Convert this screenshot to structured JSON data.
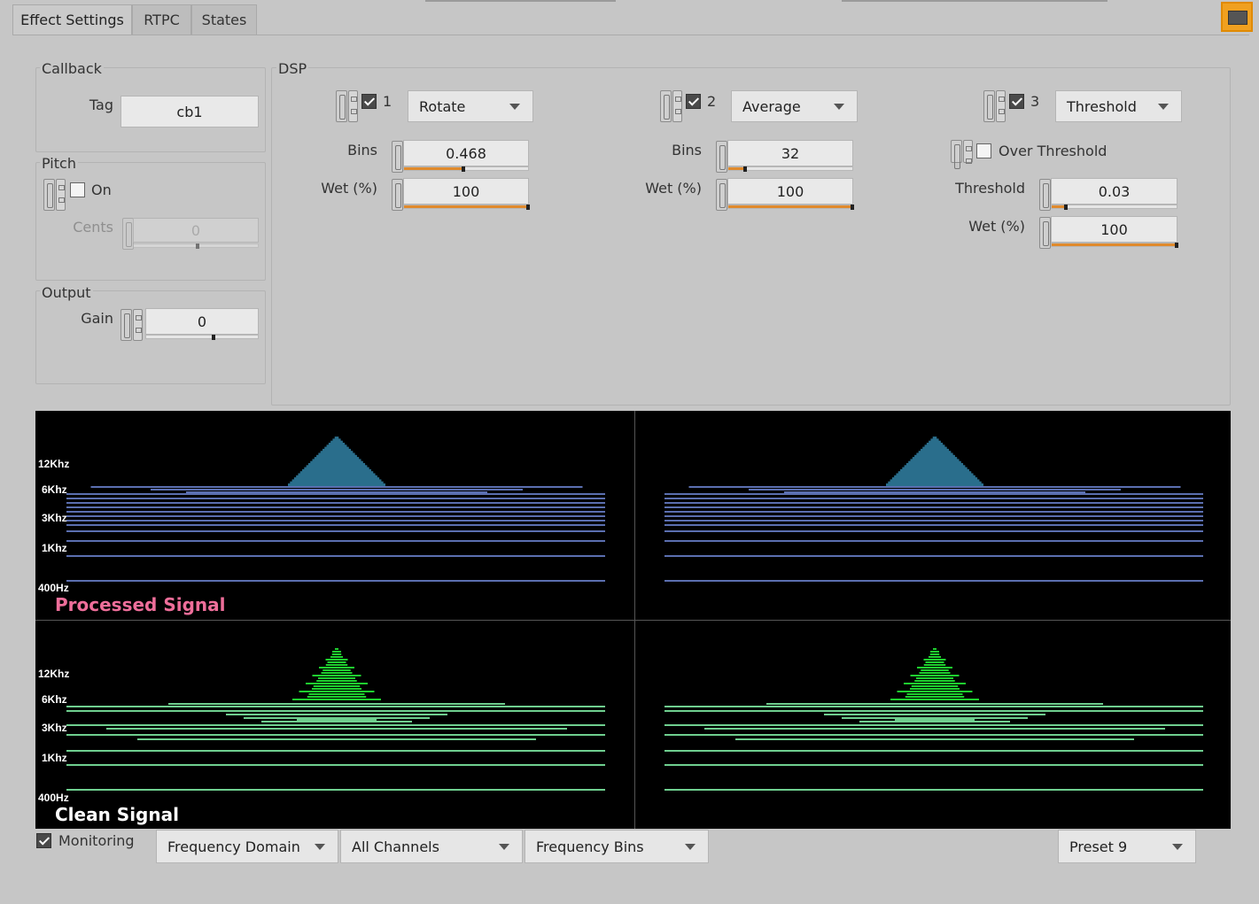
{
  "tabs": [
    {
      "label": "Effect Settings",
      "active": true
    },
    {
      "label": "RTPC",
      "active": false
    },
    {
      "label": "States",
      "active": false
    }
  ],
  "callback": {
    "group_label": "Callback",
    "tag_label": "Tag",
    "tag_value": "cb1"
  },
  "pitch": {
    "group_label": "Pitch",
    "on_label": "On",
    "on_checked": false,
    "cents_label": "Cents",
    "cents_value": "0"
  },
  "output": {
    "group_label": "Output",
    "gain_label": "Gain",
    "gain_value": "0"
  },
  "dsp": {
    "group_label": "DSP",
    "slots": [
      {
        "index": "1",
        "enabled": true,
        "effect": "Rotate",
        "bins_label": "Bins",
        "bins_value": "0.468",
        "bins_fill": 0.468,
        "wet_label": "Wet (%)",
        "wet_value": "100",
        "wet_fill": 1.0
      },
      {
        "index": "2",
        "enabled": true,
        "effect": "Average",
        "bins_label": "Bins",
        "bins_value": "32",
        "bins_fill": 0.14,
        "wet_label": "Wet (%)",
        "wet_value": "100",
        "wet_fill": 1.0
      },
      {
        "index": "3",
        "enabled": true,
        "effect": "Threshold",
        "over_label": "Over Threshold",
        "over_checked": false,
        "threshold_label": "Threshold",
        "threshold_value": "0.03",
        "threshold_fill": 0.1,
        "wet_label": "Wet (%)",
        "wet_value": "100",
        "wet_fill": 1.0
      }
    ]
  },
  "visualizer": {
    "processed_label": "Processed Signal",
    "clean_label": "Clean Signal",
    "freq_labels": [
      "12Khz",
      "6Khz",
      "3Khz",
      "1Khz",
      "400Hz"
    ],
    "colors": {
      "processed_label": "#ee6e9a",
      "clean_label": "#ffffff",
      "processed_bars": "#5b6fb0",
      "processed_peak": "#2a6e8c",
      "clean_bars": "#6fcf8f",
      "clean_peak": "#1fcf2f"
    }
  },
  "bottom": {
    "monitoring_label": "Monitoring",
    "monitoring_checked": true,
    "domain": "Frequency Domain",
    "channels": "All Channels",
    "display": "Frequency Bins",
    "preset": "Preset 9"
  }
}
